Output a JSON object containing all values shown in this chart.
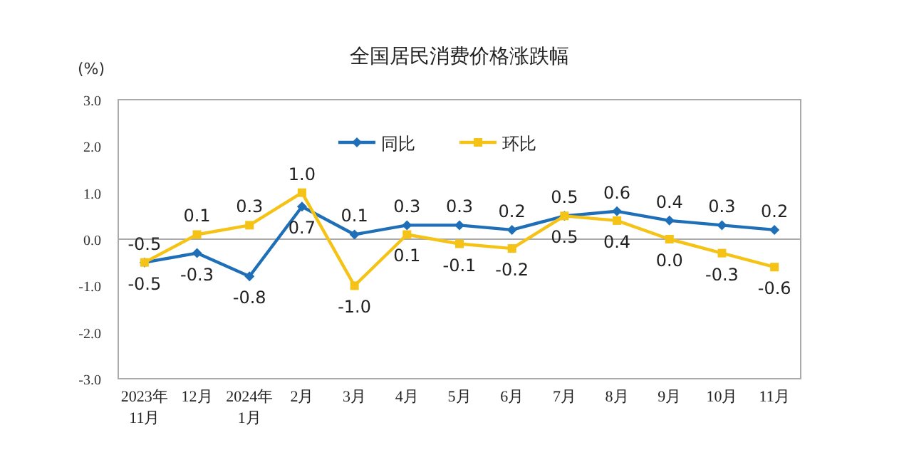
{
  "chart_data": {
    "type": "line",
    "title": "全国居民消费价格涨跌幅",
    "ylabel": "(%)",
    "categories": [
      "2023年\n11月",
      "12月",
      "2024年\n1月",
      "2月",
      "3月",
      "4月",
      "5月",
      "6月",
      "7月",
      "8月",
      "9月",
      "10月",
      "11月"
    ],
    "ylim": [
      -3,
      3
    ],
    "yticks": [
      {
        "value": -3,
        "label": "-3.0"
      },
      {
        "value": -2,
        "label": "-2.0"
      },
      {
        "value": -1,
        "label": "-1.0"
      },
      {
        "value": 0,
        "label": "0.0"
      },
      {
        "value": 1,
        "label": "1.0"
      },
      {
        "value": 2,
        "label": "2.0"
      },
      {
        "value": 3,
        "label": "3.0"
      }
    ],
    "legend": "top",
    "series": [
      {
        "name": "同比",
        "color": "#1f6fb8",
        "marker": "diamond",
        "values": [
          -0.5,
          -0.3,
          -0.8,
          0.7,
          0.1,
          0.3,
          0.3,
          0.2,
          0.5,
          0.6,
          0.4,
          0.3,
          0.2
        ],
        "value_labels": [
          "-0.5",
          "-0.3",
          "-0.8",
          "0.7",
          "0.1",
          "0.3",
          "0.3",
          "0.2",
          "0.5",
          "0.6",
          "0.4",
          "0.3",
          "0.2"
        ]
      },
      {
        "name": "环比",
        "color": "#f5c316",
        "marker": "square",
        "values": [
          -0.5,
          0.1,
          0.3,
          1.0,
          -1.0,
          0.1,
          -0.1,
          -0.2,
          0.5,
          0.4,
          0.0,
          -0.3,
          -0.6
        ],
        "value_labels": [
          "-0.5",
          "0.1",
          "0.3",
          "1.0",
          "-1.0",
          "0.1",
          "-0.1",
          "-0.2",
          "0.5",
          "0.4",
          "0.0",
          "-0.3",
          "-0.6"
        ]
      }
    ]
  }
}
